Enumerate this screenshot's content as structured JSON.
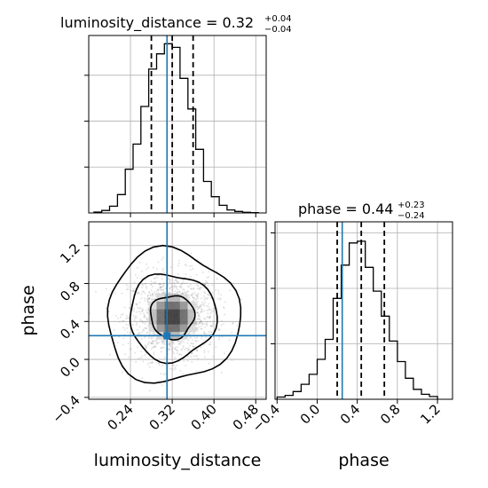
{
  "chart_data": {
    "type": "corner",
    "parameters": [
      "luminosity_distance",
      "phase"
    ],
    "truth": {
      "luminosity_distance": 0.31,
      "phase": 0.25
    },
    "colors": {
      "truth": "#1f77b4",
      "hist": "#000000",
      "grid": "#b0b0b0",
      "scatter": "#808080"
    },
    "grid": true,
    "panels": {
      "luminosity_distance": {
        "title_main": "luminosity_distance = 0.32",
        "title_sup": "+0.04",
        "title_sub": "−0.04",
        "xlim": [
          0.16,
          0.5
        ],
        "quantiles": [
          0.28,
          0.32,
          0.36
        ],
        "bin_edges": [
          0.17,
          0.185,
          0.2,
          0.215,
          0.23,
          0.245,
          0.26,
          0.275,
          0.29,
          0.305,
          0.32,
          0.335,
          0.35,
          0.365,
          0.38,
          0.395,
          0.41,
          0.425,
          0.44,
          0.455,
          0.47,
          0.485
        ],
        "counts": [
          0.3,
          0.8,
          2.2,
          6.0,
          14.3,
          22.5,
          34.8,
          47.0,
          52.0,
          55.3,
          54.1,
          44.0,
          34.0,
          20.8,
          10.3,
          5.3,
          2.5,
          1.0,
          0.5,
          0.2,
          0.1
        ],
        "ymax": 58
      },
      "phase": {
        "title_main": "phase = 0.44",
        "title_sup": "+0.23",
        "title_sub": "−0.24",
        "xlim": [
          -0.42,
          1.35
        ],
        "xlabel": "phase",
        "xticks": [
          "−0.4",
          "0.0",
          "0.4",
          "0.8",
          "1.2"
        ],
        "xtick_values": [
          -0.4,
          0.0,
          0.4,
          0.8,
          1.2
        ],
        "quantiles": [
          0.2,
          0.44,
          0.67
        ],
        "bin_edges": [
          -0.4,
          -0.32,
          -0.24,
          -0.16,
          -0.08,
          0.0,
          0.08,
          0.16,
          0.24,
          0.32,
          0.4,
          0.48,
          0.56,
          0.64,
          0.72,
          0.8,
          0.88,
          0.96,
          1.04,
          1.12,
          1.2
        ],
        "counts": [
          0.04,
          0.07,
          0.14,
          0.27,
          0.45,
          0.72,
          1.08,
          1.82,
          2.42,
          2.82,
          2.85,
          2.38,
          1.95,
          1.5,
          1.05,
          0.68,
          0.38,
          0.18,
          0.09,
          0.05
        ],
        "ymax": 3.2
      },
      "joint": {
        "xlim": [
          0.16,
          0.5
        ],
        "ylim": [
          -0.42,
          1.45
        ],
        "xlabel": "luminosity_distance",
        "ylabel": "phase",
        "xticks": [
          "0.24",
          "0.32",
          "0.40",
          "0.48"
        ],
        "xtick_values": [
          0.24,
          0.32,
          0.4,
          0.48
        ],
        "yticks": [
          "−0.4",
          "0.0",
          "0.4",
          "0.8",
          "1.2"
        ],
        "ytick_values": [
          -0.4,
          0.0,
          0.4,
          0.8,
          1.2
        ],
        "center": [
          0.32,
          0.45
        ],
        "spread": [
          0.042,
          0.23
        ],
        "contour_levels": [
          0.39,
          0.86,
          0.99
        ]
      }
    }
  }
}
